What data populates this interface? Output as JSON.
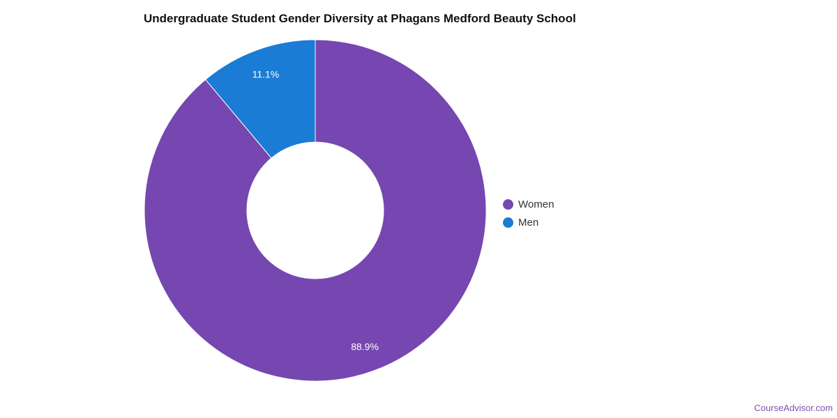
{
  "chart_data": {
    "type": "pie",
    "title": "Undergraduate Student Gender Diversity at Phagans Medford Beauty School",
    "donut": true,
    "legend_position": "right",
    "slices": [
      {
        "name": "Women",
        "value": 88.9,
        "label": "88.9%",
        "color": "#7647b0"
      },
      {
        "name": "Men",
        "value": 11.1,
        "label": "11.1%",
        "color": "#1a7cd4"
      }
    ]
  },
  "watermark": "CourseAdvisor.com"
}
